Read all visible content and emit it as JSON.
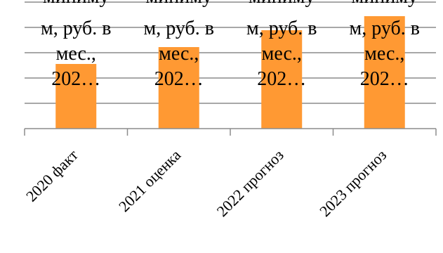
{
  "chart_data": {
    "type": "bar",
    "categories": [
      "2020 факт",
      "2021 оценка",
      "2022 прогноз",
      "2023 прогноз"
    ],
    "values": [
      11300,
      11900,
      12500,
      13000
    ],
    "ylim": [
      9000,
      13500
    ],
    "grid": true,
    "bar_color": "#FF9933",
    "data_labels": [
      [
        "миниму",
        "м, руб. в",
        "мес.,",
        "202…"
      ],
      [
        "миниму",
        "м, руб. в",
        "мес.,",
        "202…"
      ],
      [
        "миниму",
        "м, руб. в",
        "мес.,",
        "202…"
      ],
      [
        "миниму",
        "м, руб. в",
        "мес.,",
        "202…"
      ]
    ]
  }
}
